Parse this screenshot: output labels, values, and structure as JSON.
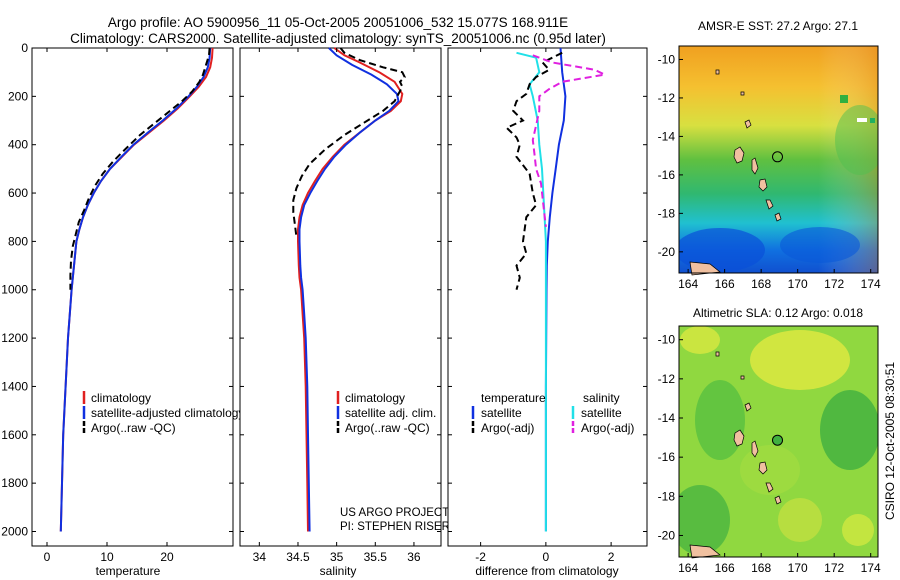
{
  "figure": {
    "title_line1": "Argo profile: AO 5900956_11 05-Oct-2005 20051006_532 15.077S 168.911E",
    "title_line2": "Climatology: CARS2000. Satellite-adjusted climatology: synTS_20051006.nc (0.95d later)",
    "credit_line1": "US ARGO PROJECT",
    "credit_line2": "PI: STEPHEN RISER",
    "side_stamp": "CSIRO 12-Oct-2005 08:30:51"
  },
  "colors": {
    "climatology": "#e02020",
    "satellite": "#1030e0",
    "argo": "#000000",
    "satellite_salinity": "#20e0e8",
    "argo_salinity": "#e020e0"
  },
  "chart_data": [
    {
      "type": "line",
      "id": "temperature",
      "xlabel": "temperature",
      "ylabel": "",
      "xlim": [
        -2.5,
        31
      ],
      "ylim": [
        2060,
        0
      ],
      "xticks": [
        0,
        10,
        20
      ],
      "yticks": [
        0,
        200,
        400,
        600,
        800,
        1000,
        1200,
        1400,
        1600,
        1800,
        2000
      ],
      "legend": [
        "climatology",
        "satellite-adjusted climatology",
        "Argo(..raw -QC)"
      ],
      "series": [
        {
          "name": "climatology",
          "color": "#e02020",
          "dash": "",
          "points": [
            [
              27.6,
              0
            ],
            [
              27.5,
              40
            ],
            [
              27.2,
              80
            ],
            [
              26.5,
              120
            ],
            [
              25.3,
              160
            ],
            [
              23.8,
              200
            ],
            [
              21.8,
              250
            ],
            [
              19.5,
              300
            ],
            [
              17,
              350
            ],
            [
              14.5,
              400
            ],
            [
              12.5,
              450
            ],
            [
              10.5,
              500
            ],
            [
              9,
              550
            ],
            [
              7.8,
              600
            ],
            [
              6.8,
              650
            ],
            [
              6,
              700
            ],
            [
              5.4,
              750
            ],
            [
              4.9,
              800
            ],
            [
              4.5,
              900
            ],
            [
              4.1,
              1000
            ],
            [
              3.8,
              1100
            ],
            [
              3.5,
              1200
            ],
            [
              3.3,
              1300
            ],
            [
              3.1,
              1400
            ],
            [
              2.9,
              1500
            ],
            [
              2.7,
              1600
            ],
            [
              2.6,
              1700
            ],
            [
              2.5,
              1800
            ],
            [
              2.4,
              1900
            ],
            [
              2.3,
              2000
            ]
          ]
        },
        {
          "name": "satellite-adjusted climatology",
          "color": "#1030e0",
          "dash": "",
          "points": [
            [
              27.2,
              0
            ],
            [
              27.1,
              40
            ],
            [
              26.8,
              80
            ],
            [
              26.1,
              120
            ],
            [
              25,
              160
            ],
            [
              23.6,
              200
            ],
            [
              21.6,
              250
            ],
            [
              19.3,
              300
            ],
            [
              16.8,
              350
            ],
            [
              14.4,
              400
            ],
            [
              12.4,
              450
            ],
            [
              10.5,
              500
            ],
            [
              9,
              550
            ],
            [
              7.8,
              600
            ],
            [
              6.8,
              650
            ],
            [
              6,
              700
            ],
            [
              5.4,
              750
            ],
            [
              4.9,
              800
            ],
            [
              4.5,
              900
            ],
            [
              4.1,
              1000
            ],
            [
              3.8,
              1100
            ],
            [
              3.5,
              1200
            ],
            [
              3.3,
              1300
            ],
            [
              3.1,
              1400
            ],
            [
              2.9,
              1500
            ],
            [
              2.7,
              1600
            ],
            [
              2.6,
              1700
            ],
            [
              2.5,
              1800
            ],
            [
              2.4,
              1900
            ],
            [
              2.3,
              2000
            ]
          ]
        },
        {
          "name": "Argo(..raw -QC)",
          "color": "#000000",
          "dash": "7,4",
          "points": [
            [
              27.1,
              0
            ],
            [
              27,
              30
            ],
            [
              26.5,
              70
            ],
            [
              26,
              110
            ],
            [
              25.4,
              140
            ],
            [
              24.2,
              180
            ],
            [
              22.5,
              220
            ],
            [
              20.5,
              260
            ],
            [
              18,
              310
            ],
            [
              15.5,
              360
            ],
            [
              13,
              420
            ],
            [
              11,
              470
            ],
            [
              9.3,
              520
            ],
            [
              8,
              570
            ],
            [
              7,
              620
            ],
            [
              6.2,
              670
            ],
            [
              5.3,
              720
            ],
            [
              4.8,
              770
            ],
            [
              4.3,
              820
            ],
            [
              4,
              880
            ],
            [
              3.9,
              940
            ],
            [
              3.9,
              1000
            ]
          ]
        }
      ]
    },
    {
      "type": "line",
      "id": "salinity",
      "xlabel": "salinity",
      "ylabel": "",
      "xlim": [
        33.75,
        36.35
      ],
      "ylim": [
        2060,
        0
      ],
      "xticks": [
        34,
        34.5,
        35,
        35.5,
        36
      ],
      "yticks": [
        0,
        200,
        400,
        600,
        800,
        1000,
        1200,
        1400,
        1600,
        1800,
        2000
      ],
      "legend": [
        "climatology",
        "satellite adj. clim.",
        "Argo(..raw -QC)"
      ],
      "series": [
        {
          "name": "climatology",
          "color": "#e02020",
          "dash": "",
          "points": [
            [
              34.97,
              0
            ],
            [
              35.1,
              30
            ],
            [
              35.3,
              60
            ],
            [
              35.55,
              100
            ],
            [
              35.75,
              140
            ],
            [
              35.85,
              190
            ],
            [
              35.83,
              220
            ],
            [
              35.7,
              260
            ],
            [
              35.5,
              300
            ],
            [
              35.3,
              350
            ],
            [
              35.1,
              400
            ],
            [
              34.95,
              450
            ],
            [
              34.82,
              500
            ],
            [
              34.72,
              550
            ],
            [
              34.63,
              600
            ],
            [
              34.56,
              650
            ],
            [
              34.52,
              700
            ],
            [
              34.5,
              750
            ],
            [
              34.5,
              800
            ],
            [
              34.51,
              900
            ],
            [
              34.52,
              950
            ],
            [
              34.54,
              1000
            ],
            [
              34.56,
              1100
            ],
            [
              34.58,
              1200
            ],
            [
              34.6,
              1400
            ],
            [
              34.61,
              1600
            ],
            [
              34.62,
              1800
            ],
            [
              34.63,
              2000
            ]
          ]
        },
        {
          "name": "satellite adj. clim.",
          "color": "#1030e0",
          "dash": "",
          "points": [
            [
              34.9,
              0
            ],
            [
              35.0,
              30
            ],
            [
              35.2,
              70
            ],
            [
              35.45,
              110
            ],
            [
              35.65,
              150
            ],
            [
              35.78,
              190
            ],
            [
              35.8,
              220
            ],
            [
              35.68,
              260
            ],
            [
              35.5,
              300
            ],
            [
              35.3,
              350
            ],
            [
              35.12,
              400
            ],
            [
              34.97,
              450
            ],
            [
              34.85,
              500
            ],
            [
              34.75,
              550
            ],
            [
              34.66,
              600
            ],
            [
              34.58,
              650
            ],
            [
              34.54,
              700
            ],
            [
              34.52,
              750
            ],
            [
              34.52,
              800
            ],
            [
              34.53,
              900
            ],
            [
              34.54,
              950
            ],
            [
              34.56,
              1000
            ],
            [
              34.58,
              1100
            ],
            [
              34.6,
              1200
            ],
            [
              34.62,
              1400
            ],
            [
              34.63,
              1600
            ],
            [
              34.64,
              1800
            ],
            [
              34.65,
              2000
            ]
          ]
        },
        {
          "name": "Argo(..raw -QC)",
          "color": "#000000",
          "dash": "7,4",
          "points": [
            [
              35.05,
              0
            ],
            [
              35.1,
              20
            ],
            [
              35.3,
              50
            ],
            [
              35.6,
              80
            ],
            [
              35.85,
              100
            ],
            [
              35.88,
              120
            ],
            [
              35.82,
              140
            ],
            [
              35.85,
              160
            ],
            [
              35.8,
              190
            ],
            [
              35.75,
              220
            ],
            [
              35.6,
              260
            ],
            [
              35.35,
              310
            ],
            [
              35.1,
              360
            ],
            [
              34.85,
              420
            ],
            [
              34.65,
              480
            ],
            [
              34.55,
              530
            ],
            [
              34.48,
              580
            ],
            [
              34.44,
              630
            ],
            [
              34.44,
              680
            ],
            [
              34.46,
              730
            ],
            [
              34.48,
              780
            ]
          ]
        }
      ]
    },
    {
      "type": "line",
      "id": "difference",
      "xlabel": "difference from climatology",
      "ylabel": "",
      "xlim": [
        -3,
        3.1
      ],
      "ylim": [
        2060,
        0
      ],
      "xticks": [
        -2,
        0,
        2
      ],
      "yticks": [
        0,
        200,
        400,
        600,
        800,
        1000,
        1200,
        1400,
        1600,
        1800,
        2000
      ],
      "legend_temperature_heading": "temperature",
      "legend_salinity_heading": "salinity",
      "legend_temperature": [
        "satellite",
        "Argo(-adj)"
      ],
      "legend_salinity": [
        "satellite",
        "Argo(-adj)"
      ],
      "series": [
        {
          "name": "temperature satellite",
          "color": "#1030e0",
          "dash": "",
          "points": [
            [
              0.45,
              0
            ],
            [
              0.5,
              100
            ],
            [
              0.6,
              200
            ],
            [
              0.55,
              300
            ],
            [
              0.4,
              400
            ],
            [
              0.3,
              500
            ],
            [
              0.2,
              600
            ],
            [
              0.12,
              700
            ],
            [
              0.06,
              800
            ],
            [
              0.03,
              900
            ],
            [
              0.02,
              1000
            ],
            [
              0.01,
              1200
            ],
            [
              0,
              1400
            ],
            [
              0,
              2000
            ]
          ]
        },
        {
          "name": "salinity satellite",
          "color": "#20e0e8",
          "dash": "",
          "points": [
            [
              -0.9,
              20
            ],
            [
              -0.3,
              40
            ],
            [
              -0.2,
              100
            ],
            [
              -0.5,
              150
            ],
            [
              -0.4,
              200
            ],
            [
              -0.25,
              300
            ],
            [
              -0.2,
              400
            ],
            [
              -0.12,
              500
            ],
            [
              -0.08,
              600
            ],
            [
              -0.04,
              700
            ],
            [
              0,
              800
            ],
            [
              0,
              2000
            ]
          ]
        },
        {
          "name": "temperature Argo(-adj)",
          "color": "#000000",
          "dash": "7,4",
          "points": [
            [
              0.5,
              20
            ],
            [
              -0.1,
              60
            ],
            [
              0.1,
              90
            ],
            [
              -0.3,
              120
            ],
            [
              -0.5,
              150
            ],
            [
              -0.6,
              190
            ],
            [
              -0.9,
              220
            ],
            [
              -1,
              260
            ],
            [
              -0.7,
              300
            ],
            [
              -1.2,
              330
            ],
            [
              -0.9,
              370
            ],
            [
              -0.8,
              400
            ],
            [
              -0.9,
              450
            ],
            [
              -0.5,
              520
            ],
            [
              -0.4,
              600
            ],
            [
              -0.3,
              650
            ],
            [
              -0.6,
              700
            ],
            [
              -0.7,
              800
            ],
            [
              -0.6,
              850
            ],
            [
              -0.9,
              900
            ],
            [
              -0.8,
              950
            ],
            [
              -0.9,
              1000
            ]
          ]
        },
        {
          "name": "salinity Argo(-adj)",
          "color": "#e020e0",
          "dash": "7,4",
          "points": [
            [
              -0.4,
              30
            ],
            [
              0.2,
              60
            ],
            [
              1.5,
              90
            ],
            [
              1.8,
              110
            ],
            [
              0.5,
              140
            ],
            [
              0.1,
              170
            ],
            [
              -0.2,
              200
            ],
            [
              -0.2,
              260
            ],
            [
              -0.3,
              320
            ],
            [
              -0.4,
              380
            ],
            [
              -0.35,
              440
            ],
            [
              -0.3,
              500
            ],
            [
              -0.15,
              560
            ],
            [
              -0.1,
              620
            ],
            [
              -0.05,
              680
            ],
            [
              0,
              740
            ]
          ]
        }
      ]
    },
    {
      "type": "heatmap",
      "id": "sst_map",
      "title": "AMSR-E SST: 27.2 Argo: 27.1",
      "xlim": [
        163.5,
        174.4
      ],
      "ylim": [
        -21.1,
        -9.3
      ],
      "xticks": [
        164,
        166,
        168,
        170,
        172,
        174
      ],
      "yticks": [
        -10,
        -12,
        -14,
        -16,
        -18,
        -20
      ],
      "marker": {
        "lon": 168.911,
        "lat": -15.077,
        "fill": "none"
      }
    },
    {
      "type": "heatmap",
      "id": "sla_map",
      "title": "Altimetric SLA: 0.12 Argo: 0.018",
      "xlim": [
        163.5,
        174.4
      ],
      "ylim": [
        -21.1,
        -9.3
      ],
      "xticks": [
        164,
        166,
        168,
        170,
        172,
        174
      ],
      "yticks": [
        -10,
        -12,
        -14,
        -16,
        -18,
        -20
      ],
      "marker": {
        "lon": 168.911,
        "lat": -15.077,
        "fill": "#40b040"
      }
    }
  ]
}
